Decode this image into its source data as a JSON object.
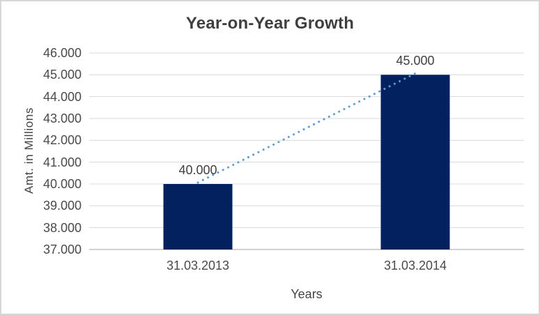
{
  "chart_data": {
    "type": "bar",
    "title": "Year-on-Year Growth",
    "xlabel": "Years",
    "ylabel": "Amt. in Millions",
    "categories": [
      "31.03.2013",
      "31.03.2014"
    ],
    "values": [
      40000,
      45000
    ],
    "value_labels": [
      "40.000",
      "45.000"
    ],
    "y_ticks": [
      "46.000",
      "45.000",
      "44.000",
      "43.000",
      "42.000",
      "41.000",
      "40.000",
      "39.000",
      "38.000",
      "37.000"
    ],
    "ylim": [
      37000,
      46000
    ],
    "grid": true,
    "legend": false,
    "trendline": {
      "style": "dotted",
      "from_value": 40000,
      "to_value": 45000
    }
  },
  "colors": {
    "bar": "#02215e",
    "trendline": "#5b9bd5",
    "gridline": "#d9d9d9",
    "axis_line": "#d2d2d2",
    "title_text": "#3f3f3f",
    "tick_text": "#4a4a4a",
    "border": "#d7d7d7"
  }
}
